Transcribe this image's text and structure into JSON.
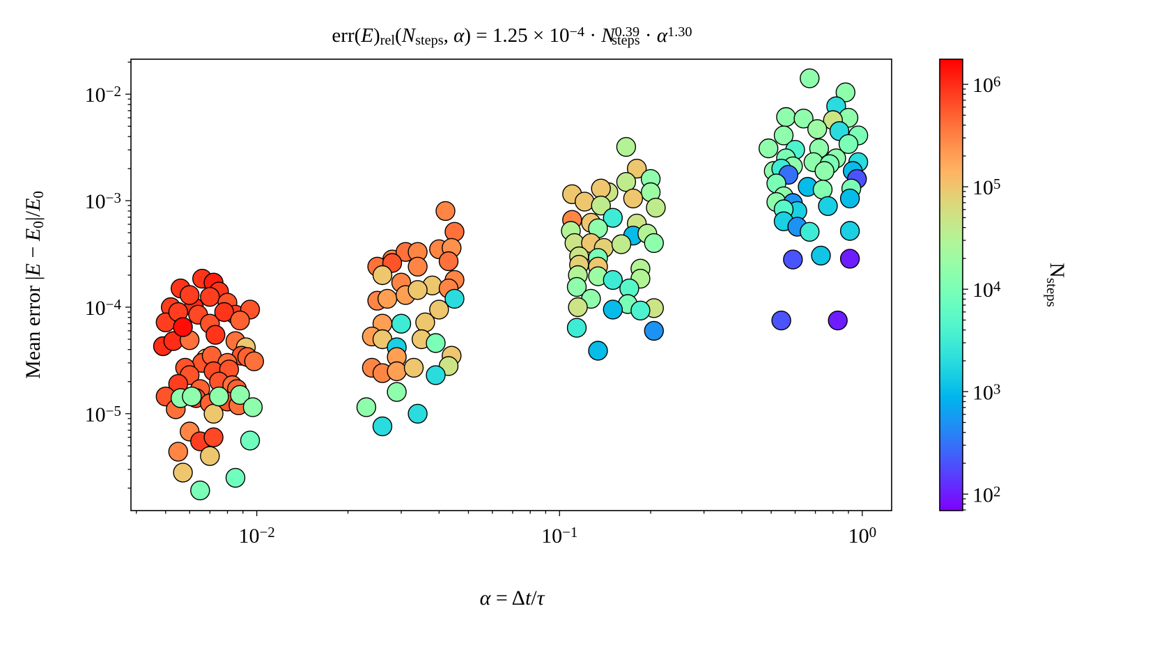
{
  "chart_data": {
    "type": "scatter",
    "title": [
      {
        "t": "err(",
        "s": "n"
      },
      {
        "t": "E",
        "s": "i"
      },
      {
        "t": ")",
        "s": "n"
      },
      {
        "t": "rel",
        "s": "sub"
      },
      {
        "t": "(",
        "s": "n"
      },
      {
        "t": "N",
        "s": "i"
      },
      {
        "t": "steps",
        "s": "sub"
      },
      {
        "t": ", ",
        "s": "n"
      },
      {
        "t": "α",
        "s": "i"
      },
      {
        "t": ") = 1.25 × 10",
        "s": "n"
      },
      {
        "t": "−4",
        "s": "sup"
      },
      {
        "t": " · ",
        "s": "n"
      },
      {
        "t": "N",
        "s": "i"
      },
      {
        "t": "0.39",
        "s": "sup"
      },
      {
        "t": "steps",
        "s": "sub",
        "back": true
      },
      {
        "t": " · ",
        "s": "n"
      },
      {
        "t": "α",
        "s": "i"
      },
      {
        "t": "1.30",
        "s": "sup"
      }
    ],
    "xlabel": [
      {
        "t": "α",
        "s": "i"
      },
      {
        "t": " = Δ",
        "s": "n"
      },
      {
        "t": "t",
        "s": "i"
      },
      {
        "t": "/",
        "s": "n"
      },
      {
        "t": "τ",
        "s": "i"
      }
    ],
    "ylabel": [
      {
        "t": "Mean error |",
        "s": "n"
      },
      {
        "t": "E",
        "s": "i"
      },
      {
        "t": " − ",
        "s": "n"
      },
      {
        "t": "E",
        "s": "i"
      },
      {
        "t": "0",
        "s": "sub"
      },
      {
        "t": "|/",
        "s": "n"
      },
      {
        "t": "E",
        "s": "i"
      },
      {
        "t": "0",
        "s": "sub"
      }
    ],
    "xscale": "log",
    "yscale": "log",
    "xlim": [
      0.00384,
      1.25
    ],
    "ylim": [
      1.23e-06,
      0.0213
    ],
    "grid": false,
    "x_ticks": [
      {
        "value": 0.01,
        "label": [
          {
            "t": "10",
            "s": "n"
          },
          {
            "t": "−2",
            "s": "sup"
          }
        ]
      },
      {
        "value": 0.1,
        "label": [
          {
            "t": "10",
            "s": "n"
          },
          {
            "t": "−1",
            "s": "sup"
          }
        ]
      },
      {
        "value": 1,
        "label": [
          {
            "t": "10",
            "s": "n"
          },
          {
            "t": "0",
            "s": "sup"
          }
        ]
      }
    ],
    "y_ticks": [
      {
        "value": 0.01,
        "label": [
          {
            "t": "10",
            "s": "n"
          },
          {
            "t": "−2",
            "s": "sup"
          }
        ]
      },
      {
        "value": 0.001,
        "label": [
          {
            "t": "10",
            "s": "n"
          },
          {
            "t": "−3",
            "s": "sup"
          }
        ]
      },
      {
        "value": 0.0001,
        "label": [
          {
            "t": "10",
            "s": "n"
          },
          {
            "t": "−4",
            "s": "sup"
          }
        ]
      },
      {
        "value": 1e-05,
        "label": [
          {
            "t": "10",
            "s": "n"
          },
          {
            "t": "−5",
            "s": "sup"
          }
        ]
      }
    ],
    "colorbar": {
      "colormap": "rainbow",
      "scale": "log",
      "range": [
        69,
        1760000
      ],
      "label": [
        {
          "t": "N",
          "s": "n"
        },
        {
          "t": "steps",
          "s": "sub"
        }
      ],
      "ticks": [
        {
          "value": 100,
          "label": [
            {
              "t": "10",
              "s": "n"
            },
            {
              "t": "2",
              "s": "sup"
            }
          ]
        },
        {
          "value": 1000,
          "label": [
            {
              "t": "10",
              "s": "n"
            },
            {
              "t": "3",
              "s": "sup"
            }
          ]
        },
        {
          "value": 10000,
          "label": [
            {
              "t": "10",
              "s": "n"
            },
            {
              "t": "4",
              "s": "sup"
            }
          ]
        },
        {
          "value": 100000,
          "label": [
            {
              "t": "10",
              "s": "n"
            },
            {
              "t": "5",
              "s": "sup"
            }
          ]
        },
        {
          "value": 1000000,
          "label": [
            {
              "t": "10",
              "s": "n"
            },
            {
              "t": "6",
              "s": "sup"
            }
          ]
        }
      ]
    },
    "marker_edge_color": "#000000",
    "point_fields": [
      "alpha",
      "mean_error",
      "N_steps"
    ],
    "points": [
      [
        0.0052,
        0.0001,
        800000.0
      ],
      [
        0.0056,
        0.00015,
        900000.0
      ],
      [
        0.0062,
        0.0001,
        1000000.0
      ],
      [
        0.0066,
        0.000185,
        900000.0
      ],
      [
        0.0072,
        0.00017,
        1200000.0
      ],
      [
        0.0075,
        0.00014,
        900000.0
      ],
      [
        0.006,
        0.00013,
        800000.0
      ],
      [
        0.007,
        0.000125,
        800000.0
      ],
      [
        0.008,
        0.00011,
        600000.0
      ],
      [
        0.0085,
        8.5e-05,
        800000.0
      ],
      [
        0.0095,
        9.5e-05,
        600000.0
      ],
      [
        0.005,
        7.2e-05,
        800000.0
      ],
      [
        0.0055,
        9e-05,
        800000.0
      ],
      [
        0.0064,
        8.5e-05,
        700000.0
      ],
      [
        0.007,
        7e-05,
        600000.0
      ],
      [
        0.0078,
        9e-05,
        900000.0
      ],
      [
        0.0088,
        7.5e-05,
        500000.0
      ],
      [
        0.0049,
        4.3e-05,
        1000000.0
      ],
      [
        0.0053,
        4.8e-05,
        1000000.0
      ],
      [
        0.006,
        4.9e-05,
        400000.0
      ],
      [
        0.0073,
        5.5e-05,
        900000.0
      ],
      [
        0.0085,
        4.8e-05,
        400000.0
      ],
      [
        0.0057,
        6.5e-05,
        1500000.0
      ],
      [
        0.0092,
        4.2e-05,
        100000.0
      ],
      [
        0.0089,
        3.5e-05,
        600000.0
      ],
      [
        0.0093,
        3.4e-05,
        500000.0
      ],
      [
        0.0098,
        3.1e-05,
        400000.0
      ],
      [
        0.0068,
        3.3e-05,
        100000.0
      ],
      [
        0.0066,
        3e-05,
        600000.0
      ],
      [
        0.0071,
        3.5e-05,
        500000.0
      ],
      [
        0.008,
        3e-05,
        400000.0
      ],
      [
        0.0058,
        2.7e-05,
        600000.0
      ],
      [
        0.006,
        2.3e-05,
        600000.0
      ],
      [
        0.0072,
        2.5e-05,
        700000.0
      ],
      [
        0.0081,
        2.6e-05,
        600000.0
      ],
      [
        0.0055,
        1.9e-05,
        800000.0
      ],
      [
        0.0065,
        1.7e-05,
        500000.0
      ],
      [
        0.0075,
        2e-05,
        600000.0
      ],
      [
        0.0083,
        1.85e-05,
        400000.0
      ],
      [
        0.0086,
        1.7e-05,
        500000.0
      ],
      [
        0.005,
        1.45e-05,
        600000.0
      ],
      [
        0.0063,
        1.4e-05,
        600000.0
      ],
      [
        0.007,
        1.25e-05,
        500000.0
      ],
      [
        0.008,
        1.3e-05,
        600000.0
      ],
      [
        0.0054,
        1.1e-05,
        400000.0
      ],
      [
        0.0072,
        1e-05,
        100000.0
      ],
      [
        0.0087,
        1.2e-05,
        400000.0
      ],
      [
        0.0056,
        1.4e-05,
        15000.0
      ],
      [
        0.0061,
        1.45e-05,
        15000.0
      ],
      [
        0.0075,
        1.45e-05,
        15000.0
      ],
      [
        0.0088,
        1.5e-05,
        15000.0
      ],
      [
        0.0097,
        1.15e-05,
        15000.0
      ],
      [
        0.006,
        6.8e-06,
        300000.0
      ],
      [
        0.0065,
        5.5e-06,
        800000.0
      ],
      [
        0.0072,
        6e-06,
        700000.0
      ],
      [
        0.0055,
        4.4e-06,
        300000.0
      ],
      [
        0.007,
        4e-06,
        100000.0
      ],
      [
        0.0095,
        5.6e-06,
        8000.0
      ],
      [
        0.0057,
        2.8e-06,
        100000.0
      ],
      [
        0.0085,
        2.5e-06,
        8000.0
      ],
      [
        0.0065,
        1.9e-06,
        10000.0
      ],
      [
        0.042,
        0.0008,
        300000.0
      ],
      [
        0.045,
        0.00051,
        400000.0
      ],
      [
        0.04,
        0.00035,
        300000.0
      ],
      [
        0.044,
        0.00036,
        250000.0
      ],
      [
        0.028,
        0.00028,
        300000.0
      ],
      [
        0.031,
        0.00033,
        400000.0
      ],
      [
        0.034,
        0.00033,
        300000.0
      ],
      [
        0.025,
        0.00024,
        400000.0
      ],
      [
        0.034,
        0.00024,
        300000.0
      ],
      [
        0.043,
        0.00027,
        400000.0
      ],
      [
        0.045,
        0.00018,
        300000.0
      ],
      [
        0.03,
        0.00017,
        300000.0
      ],
      [
        0.038,
        0.00016,
        100000.0
      ],
      [
        0.043,
        0.00015,
        300000.0
      ],
      [
        0.025,
        0.000115,
        300000.0
      ],
      [
        0.027,
        0.00012,
        200000.0
      ],
      [
        0.031,
        0.00013,
        200000.0
      ],
      [
        0.045,
        0.00012,
        2000.0
      ],
      [
        0.028,
        0.00026,
        600000.0
      ],
      [
        0.026,
        0.0002,
        100000.0
      ],
      [
        0.034,
        0.000145,
        100000.0
      ],
      [
        0.04,
        9.5e-05,
        100000.0
      ],
      [
        0.036,
        7.2e-05,
        100000.0
      ],
      [
        0.03,
        7e-05,
        3000.0
      ],
      [
        0.026,
        7e-05,
        200000.0
      ],
      [
        0.024,
        5.3e-05,
        200000.0
      ],
      [
        0.026,
        5e-05,
        100000.0
      ],
      [
        0.035,
        5e-05,
        100000.0
      ],
      [
        0.039,
        4.6e-05,
        10000.0
      ],
      [
        0.029,
        4.2e-05,
        1500.0
      ],
      [
        0.044,
        3.5e-05,
        100000.0
      ],
      [
        0.029,
        3.4e-05,
        200000.0
      ],
      [
        0.024,
        2.7e-05,
        300000.0
      ],
      [
        0.026,
        2.4e-05,
        300000.0
      ],
      [
        0.029,
        2.5e-05,
        200000.0
      ],
      [
        0.033,
        2.7e-05,
        100000.0
      ],
      [
        0.043,
        2.8e-05,
        50000.0
      ],
      [
        0.039,
        2.3e-05,
        2000.0
      ],
      [
        0.029,
        1.6e-05,
        15000.0
      ],
      [
        0.023,
        1.15e-05,
        15000.0
      ],
      [
        0.034,
        1e-05,
        2000.0
      ],
      [
        0.026,
        7.6e-06,
        2000.0
      ],
      [
        0.166,
        0.0032,
        30000.0
      ],
      [
        0.18,
        0.002,
        100000.0
      ],
      [
        0.2,
        0.0016,
        15000.0
      ],
      [
        0.166,
        0.0015,
        40000.0
      ],
      [
        0.2,
        0.0012,
        20000.0
      ],
      [
        0.145,
        0.0012,
        50000.0
      ],
      [
        0.11,
        0.00115,
        100000.0
      ],
      [
        0.137,
        0.0013,
        100000.0
      ],
      [
        0.121,
        0.00098,
        100000.0
      ],
      [
        0.137,
        0.0009,
        40000.0
      ],
      [
        0.175,
        0.00105,
        100000.0
      ],
      [
        0.208,
        0.00086,
        40000.0
      ],
      [
        0.11,
        0.00066,
        300000.0
      ],
      [
        0.127,
        0.00062,
        100000.0
      ],
      [
        0.15,
        0.00069,
        3000.0
      ],
      [
        0.18,
        0.00061,
        50000.0
      ],
      [
        0.109,
        0.00052,
        30000.0
      ],
      [
        0.134,
        0.00055,
        15000.0
      ],
      [
        0.175,
        0.00047,
        1000.0
      ],
      [
        0.195,
        0.00049,
        30000.0
      ],
      [
        0.112,
        0.0004,
        50000.0
      ],
      [
        0.127,
        0.0004,
        100000.0
      ],
      [
        0.14,
        0.00036,
        80000.0
      ],
      [
        0.16,
        0.00039,
        40000.0
      ],
      [
        0.205,
        0.0004,
        15000.0
      ],
      [
        0.116,
        0.0003,
        50000.0
      ],
      [
        0.134,
        0.00029,
        10000.0
      ],
      [
        0.116,
        0.00025,
        80000.0
      ],
      [
        0.134,
        0.00024,
        100000.0
      ],
      [
        0.185,
        0.00023,
        30000.0
      ],
      [
        0.115,
        0.0002,
        30000.0
      ],
      [
        0.134,
        0.000195,
        20000.0
      ],
      [
        0.15,
        0.00018,
        3000.0
      ],
      [
        0.185,
        0.000185,
        30000.0
      ],
      [
        0.114,
        0.000155,
        15000.0
      ],
      [
        0.17,
        0.00015,
        5000.0
      ],
      [
        0.127,
        0.00012,
        15000.0
      ],
      [
        0.168,
        0.000107,
        10000.0
      ],
      [
        0.115,
        0.0001,
        50000.0
      ],
      [
        0.205,
        9.8e-05,
        50000.0
      ],
      [
        0.185,
        9.3e-05,
        4000.0
      ],
      [
        0.15,
        9.5e-05,
        1000.0
      ],
      [
        0.114,
        6.4e-05,
        3000.0
      ],
      [
        0.205,
        6e-05,
        500
      ],
      [
        0.134,
        3.9e-05,
        1000.0
      ],
      [
        0.67,
        0.0141,
        15000.0
      ],
      [
        0.88,
        0.0104,
        15000.0
      ],
      [
        0.82,
        0.0077,
        2000.0
      ],
      [
        0.56,
        0.0061,
        15000.0
      ],
      [
        0.64,
        0.0059,
        15000.0
      ],
      [
        0.9,
        0.006,
        15000.0
      ],
      [
        0.8,
        0.0057,
        50000.0
      ],
      [
        0.71,
        0.0047,
        20000.0
      ],
      [
        0.97,
        0.0041,
        10000.0
      ],
      [
        0.55,
        0.0041,
        15000.0
      ],
      [
        0.84,
        0.0045,
        2000.0
      ],
      [
        0.49,
        0.0031,
        15000.0
      ],
      [
        0.6,
        0.003,
        4000.0
      ],
      [
        0.72,
        0.0031,
        15000.0
      ],
      [
        0.9,
        0.0034,
        10000.0
      ],
      [
        0.56,
        0.0025,
        10000.0
      ],
      [
        0.69,
        0.0023,
        15000.0
      ],
      [
        0.82,
        0.0025,
        15000.0
      ],
      [
        0.97,
        0.0023,
        2000.0
      ],
      [
        0.51,
        0.0019,
        15000.0
      ],
      [
        0.59,
        0.0021,
        15000.0
      ],
      [
        0.54,
        0.002,
        3000.0
      ],
      [
        0.78,
        0.0022,
        10000.0
      ],
      [
        0.93,
        0.0019,
        1000.0
      ],
      [
        0.57,
        0.00175,
        300
      ],
      [
        0.75,
        0.0019,
        15000.0
      ],
      [
        0.96,
        0.0016,
        200
      ],
      [
        0.52,
        0.00145,
        10000.0
      ],
      [
        0.66,
        0.00135,
        1000.0
      ],
      [
        0.74,
        0.00127,
        12000.0
      ],
      [
        0.92,
        0.0013,
        10000.0
      ],
      [
        0.55,
        0.0011,
        15000.0
      ],
      [
        0.52,
        0.00097,
        15000.0
      ],
      [
        0.91,
        0.00105,
        1000.0
      ],
      [
        0.59,
        0.00095,
        500
      ],
      [
        0.77,
        0.00089,
        1500.0
      ],
      [
        0.61,
        0.0008,
        1500.0
      ],
      [
        0.55,
        0.00083,
        5000.0
      ],
      [
        0.55,
        0.00064,
        1500.0
      ],
      [
        0.61,
        0.00057,
        500
      ],
      [
        0.67,
        0.00051,
        3000.0
      ],
      [
        0.91,
        0.00052,
        1500.0
      ],
      [
        0.59,
        0.00028,
        200
      ],
      [
        0.73,
        0.000305,
        1200.0
      ],
      [
        0.91,
        0.000285,
        100
      ],
      [
        0.54,
        7.5e-05,
        200
      ],
      [
        0.83,
        7.5e-05,
        100
      ]
    ]
  }
}
